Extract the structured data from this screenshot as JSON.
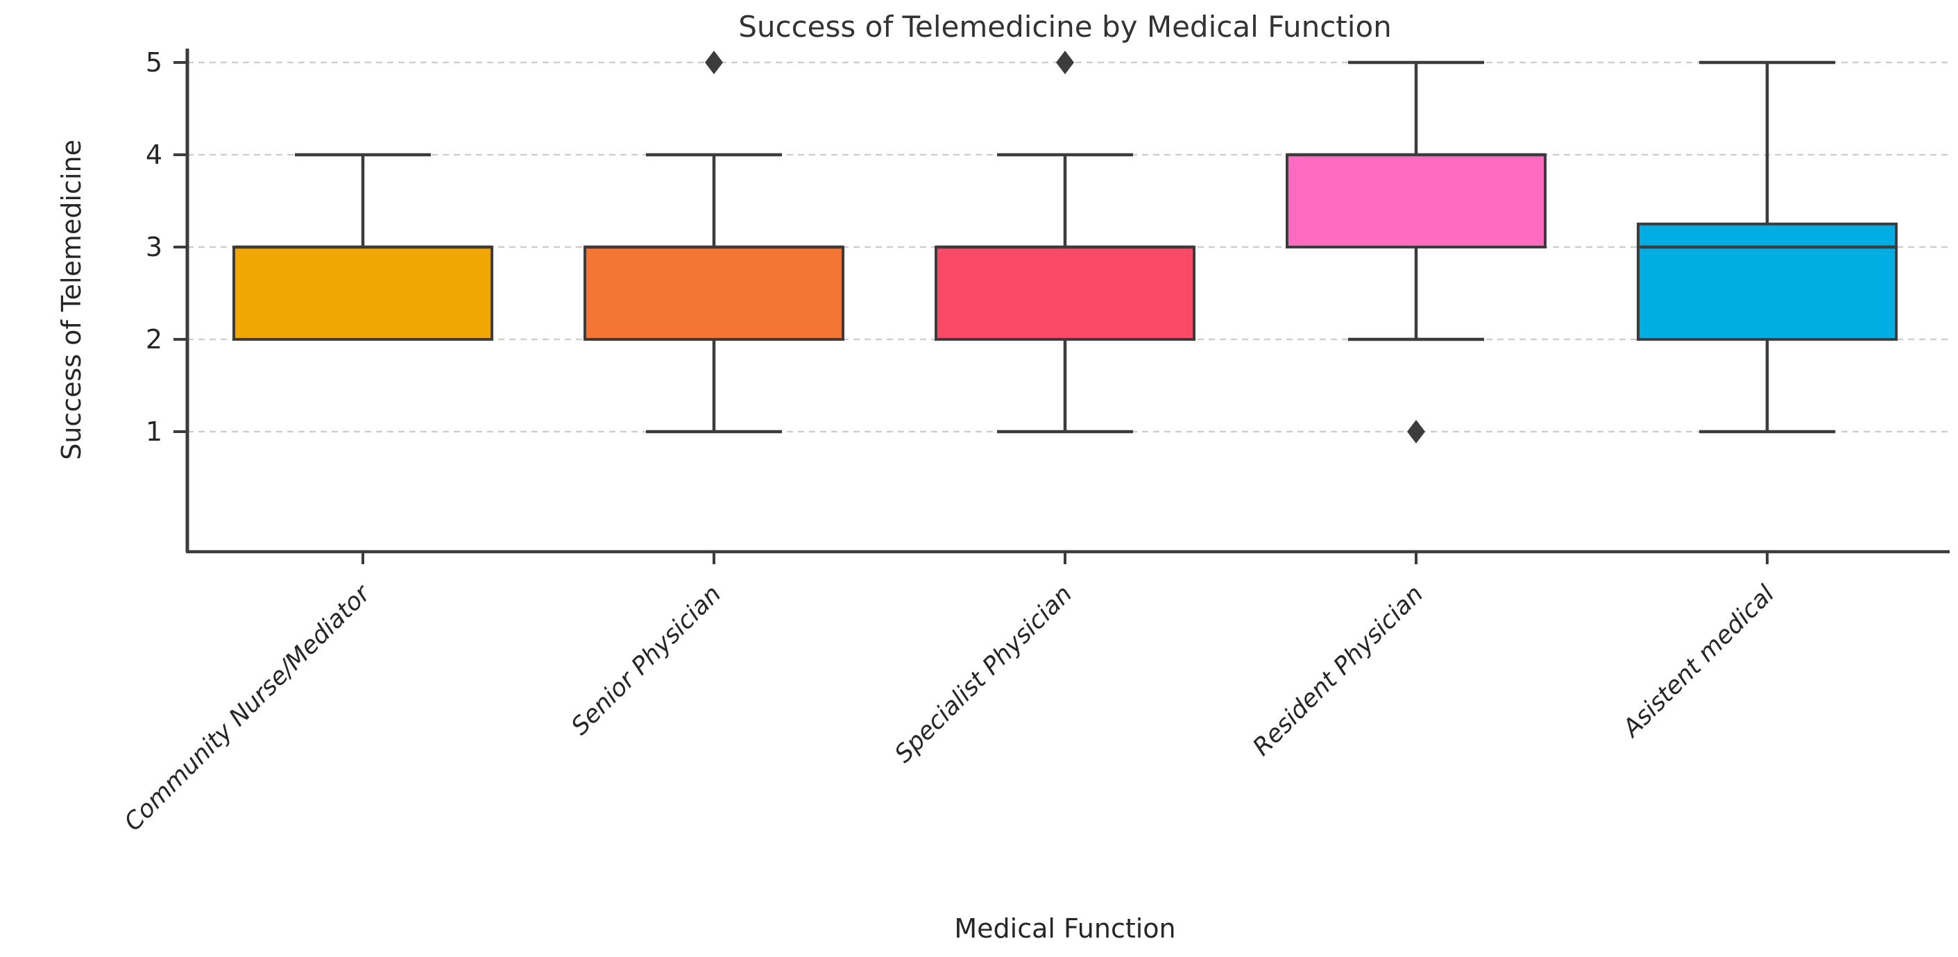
{
  "chart_data": {
    "type": "box",
    "title": "Success of Telemedicine by Medical Function",
    "xlabel": "Medical Function",
    "ylabel": "Success of Telemedicine",
    "categories": [
      "Community Nurse/Mediator",
      "Senior Physician",
      "Specialist Physician",
      "Resident Physician",
      "Asistent medical"
    ],
    "yticks": [
      1,
      2,
      3,
      4,
      5
    ],
    "ylim": [
      0.6,
      5.3
    ],
    "grid": "horizontal-dashed",
    "legend": "none",
    "series": [
      {
        "name": "Community Nurse/Mediator",
        "color": "#F2A602",
        "whisker_low": 2,
        "q1": 2,
        "median": 3,
        "q3": 3,
        "whisker_high": 4,
        "outliers": []
      },
      {
        "name": "Senior Physician",
        "color": "#F47534",
        "whisker_low": 1,
        "q1": 2,
        "median": 3,
        "q3": 3,
        "whisker_high": 4,
        "outliers": [
          5
        ]
      },
      {
        "name": "Specialist Physician",
        "color": "#FB4A67",
        "whisker_low": 1,
        "q1": 2,
        "median": 3,
        "q3": 3,
        "whisker_high": 4,
        "outliers": [
          5
        ]
      },
      {
        "name": "Resident Physician",
        "color": "#FF6BC1",
        "whisker_low": 2,
        "q1": 3,
        "median": 4,
        "q3": 4,
        "whisker_high": 5,
        "outliers": [
          1
        ]
      },
      {
        "name": "Asistent medical",
        "color": "#00AEE4",
        "whisker_low": 1,
        "q1": 2,
        "median": 3,
        "q3": 3.25,
        "whisker_high": 5,
        "outliers": []
      }
    ],
    "style": {
      "line_color": "#3C3C3C",
      "grid_color": "#CCCCCC",
      "tick_label_color": "#262626",
      "title_color": "#333333"
    }
  }
}
